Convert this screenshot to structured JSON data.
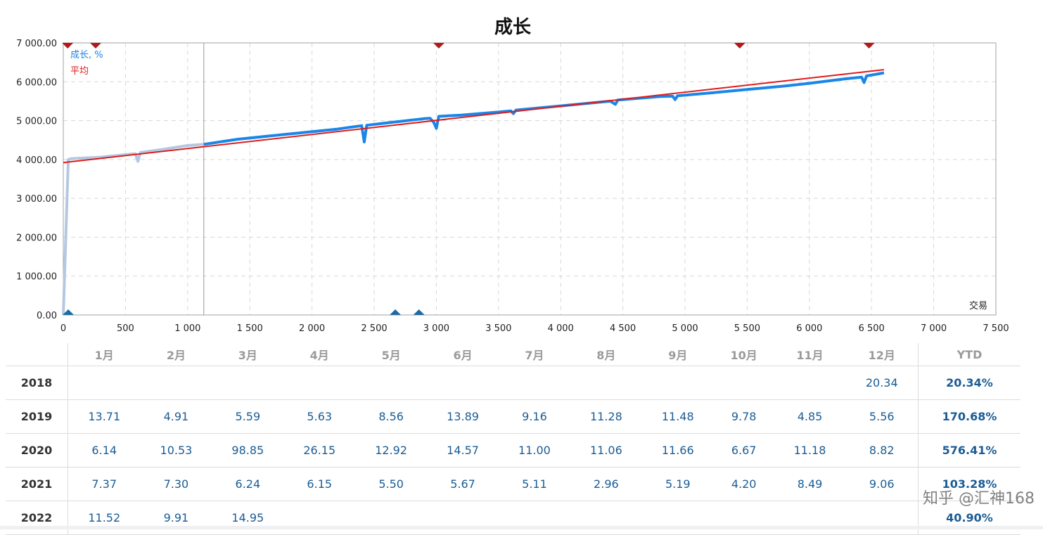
{
  "chart_data": {
    "type": "line",
    "title": "成长",
    "xlabel": "交易",
    "ylabel": "",
    "xlim": [
      0,
      7500
    ],
    "ylim": [
      0,
      7000
    ],
    "x_ticks": [
      {
        "v": 0,
        "label": "0"
      },
      {
        "v": 500,
        "label": "500"
      },
      {
        "v": 1000,
        "label": "1 000"
      },
      {
        "v": 1500,
        "label": "1 500"
      },
      {
        "v": 2000,
        "label": "2 000"
      },
      {
        "v": 2500,
        "label": "2 500"
      },
      {
        "v": 3000,
        "label": "3 000"
      },
      {
        "v": 3500,
        "label": "3 500"
      },
      {
        "v": 4000,
        "label": "4 000"
      },
      {
        "v": 4500,
        "label": "4 500"
      },
      {
        "v": 5000,
        "label": "5 000"
      },
      {
        "v": 5500,
        "label": "5 500"
      },
      {
        "v": 6000,
        "label": "6 000"
      },
      {
        "v": 6500,
        "label": "6 500"
      },
      {
        "v": 7000,
        "label": "7 000"
      },
      {
        "v": 7500,
        "label": "7 500"
      }
    ],
    "y_ticks": [
      {
        "v": 0,
        "label": "0.00"
      },
      {
        "v": 1000,
        "label": "1 000.00"
      },
      {
        "v": 2000,
        "label": "2 000.00"
      },
      {
        "v": 3000,
        "label": "3 000.00"
      },
      {
        "v": 4000,
        "label": "4 000.00"
      },
      {
        "v": 5000,
        "label": "5 000.00"
      },
      {
        "v": 6000,
        "label": "6 000.00"
      },
      {
        "v": 7000,
        "label": "7 000.00"
      }
    ],
    "grid": true,
    "legend_position": "top-left",
    "divider_x": 1130,
    "series": [
      {
        "name": "成长, %",
        "color": "#1a86e8",
        "history_color": "#b4c8e2",
        "history_until_x": 1130,
        "points": [
          [
            0,
            0
          ],
          [
            40,
            4000
          ],
          [
            60,
            4020
          ],
          [
            300,
            4060
          ],
          [
            580,
            4150
          ],
          [
            600,
            3950
          ],
          [
            620,
            4180
          ],
          [
            800,
            4260
          ],
          [
            1000,
            4360
          ],
          [
            1130,
            4390
          ],
          [
            1400,
            4520
          ],
          [
            1800,
            4650
          ],
          [
            2200,
            4780
          ],
          [
            2400,
            4870
          ],
          [
            2420,
            4450
          ],
          [
            2440,
            4880
          ],
          [
            2600,
            4940
          ],
          [
            2900,
            5050
          ],
          [
            2950,
            5060
          ],
          [
            2980,
            4950
          ],
          [
            3000,
            4800
          ],
          [
            3020,
            5110
          ],
          [
            3200,
            5140
          ],
          [
            3500,
            5220
          ],
          [
            3600,
            5250
          ],
          [
            3620,
            5180
          ],
          [
            3640,
            5270
          ],
          [
            4000,
            5380
          ],
          [
            4400,
            5500
          ],
          [
            4440,
            5420
          ],
          [
            4460,
            5530
          ],
          [
            4800,
            5620
          ],
          [
            4900,
            5630
          ],
          [
            4920,
            5540
          ],
          [
            4940,
            5640
          ],
          [
            5200,
            5710
          ],
          [
            5500,
            5800
          ],
          [
            5800,
            5890
          ],
          [
            6000,
            5960
          ],
          [
            6300,
            6080
          ],
          [
            6420,
            6120
          ],
          [
            6440,
            5980
          ],
          [
            6460,
            6150
          ],
          [
            6600,
            6230
          ]
        ]
      },
      {
        "name": "平均",
        "color": "#e01b1b",
        "points": [
          [
            0,
            3920
          ],
          [
            6600,
            6310
          ]
        ]
      }
    ],
    "top_markers_x": [
      35,
      260,
      3020,
      5440,
      6480
    ],
    "bottom_markers_x": [
      40,
      2670,
      2860
    ],
    "marker_top_color": "#b01a1a",
    "marker_bottom_color": "#1c6aa6"
  },
  "table": {
    "months": [
      "1月",
      "2月",
      "3月",
      "4月",
      "5月",
      "6月",
      "7月",
      "8月",
      "9月",
      "10月",
      "11月",
      "12月"
    ],
    "ytd_header": "YTD",
    "rows": [
      {
        "year": "2018",
        "cells": [
          "",
          "",
          "",
          "",
          "",
          "",
          "",
          "",
          "",
          "",
          "",
          "20.34"
        ],
        "ytd": "20.34%"
      },
      {
        "year": "2019",
        "cells": [
          "13.71",
          "4.91",
          "5.59",
          "5.63",
          "8.56",
          "13.89",
          "9.16",
          "11.28",
          "11.48",
          "9.78",
          "4.85",
          "5.56"
        ],
        "ytd": "170.68%"
      },
      {
        "year": "2020",
        "cells": [
          "6.14",
          "10.53",
          "98.85",
          "26.15",
          "12.92",
          "14.57",
          "11.00",
          "11.06",
          "11.66",
          "6.67",
          "11.18",
          "8.82"
        ],
        "ytd": "576.41%"
      },
      {
        "year": "2021",
        "cells": [
          "7.37",
          "7.30",
          "6.24",
          "6.15",
          "5.50",
          "5.67",
          "5.11",
          "2.96",
          "5.19",
          "4.20",
          "8.49",
          "9.06"
        ],
        "ytd": "103.28%"
      },
      {
        "year": "2022",
        "cells": [
          "11.52",
          "9.91",
          "14.95",
          "",
          "",
          "",
          "",
          "",
          "",
          "",
          "",
          ""
        ],
        "ytd": "40.90%"
      }
    ]
  },
  "watermark": "知乎 @汇神168"
}
